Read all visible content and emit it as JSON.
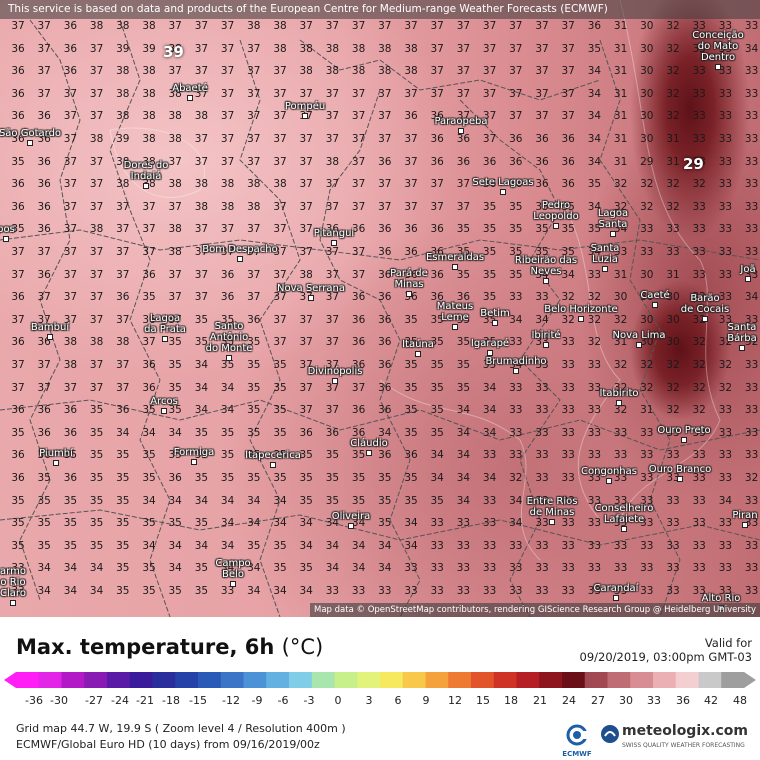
{
  "header_notice": "This service is based on data and products of the European Centre for Medium-range Weather Forecasts (ECMWF)",
  "attribution": "Map data © OpenStreetMap contributors, rendering GIScience Research Group @ Heidelberg University",
  "title": "Max. temperature, 6h",
  "unit": "(°C)",
  "valid_label": "Valid for",
  "valid_time": "09/20/2019, 03:00pm GMT-03",
  "grid_info": "Grid map 44.7 W, 19.9 S ( Zoom level 4 / Resolution 400m )",
  "model_info": "ECMWF/Global Euro HD (10 days) from 09/16/2019/00z",
  "ecmwf_label": "ECMWF",
  "brand": "meteologix.com",
  "brand_sub": "SWISS QUALITY WEATHER FORECASTING",
  "scale": {
    "ticks": [
      "-36",
      "-30",
      "-27",
      "-24",
      "-21",
      "-18",
      "-15",
      "-12",
      "-9",
      "-6",
      "-3",
      "0",
      "3",
      "6",
      "9",
      "12",
      "15",
      "18",
      "21",
      "24",
      "27",
      "30",
      "33",
      "36",
      "42",
      "48"
    ],
    "colors": [
      "#ff1ef5",
      "#e225e6",
      "#b419c8",
      "#8a1ab4",
      "#5b1aa6",
      "#3a1c9a",
      "#2a2d9c",
      "#2442a8",
      "#2a5ab8",
      "#3a75c8",
      "#4c92d6",
      "#62b1e0",
      "#7fcde6",
      "#a8e6ae",
      "#c7ef8a",
      "#e3f27a",
      "#f6e85f",
      "#f8c84a",
      "#f6a23c",
      "#ee7a31",
      "#e2542a",
      "#cf3326",
      "#b51e24",
      "#8e141e",
      "#6a0f18",
      "#a24852",
      "#c06c74",
      "#d88c93",
      "#ebb0b4",
      "#f4cfd2",
      "#c9c9c9",
      "#9e9e9e"
    ]
  },
  "labels_big": [
    {
      "text": "39"
    },
    {
      "text": "29"
    }
  ],
  "rows": [
    [
      "37",
      "37",
      "36",
      "38",
      "38",
      "38",
      "37",
      "37",
      "37",
      "38",
      "38",
      "37",
      "37",
      "37",
      "37",
      "37",
      "37",
      "37",
      "37",
      "37",
      "37",
      "37",
      "36",
      "31",
      "30",
      "32",
      "33",
      "33",
      "33"
    ],
    [
      "36",
      "37",
      "36",
      "37",
      "39",
      "39",
      "38",
      "37",
      "37",
      "37",
      "38",
      "38",
      "38",
      "38",
      "38",
      "38",
      "37",
      "37",
      "37",
      "37",
      "37",
      "37",
      "35",
      "31",
      "30",
      "32",
      "33",
      "33",
      "34"
    ],
    [
      "36",
      "37",
      "36",
      "37",
      "38",
      "38",
      "37",
      "37",
      "37",
      "37",
      "37",
      "38",
      "38",
      "38",
      "38",
      "38",
      "37",
      "37",
      "37",
      "37",
      "37",
      "37",
      "34",
      "31",
      "30",
      "32",
      "33",
      "33",
      "33"
    ],
    [
      "36",
      "37",
      "37",
      "37",
      "38",
      "38",
      "38",
      "37",
      "37",
      "37",
      "37",
      "37",
      "37",
      "37",
      "37",
      "37",
      "37",
      "37",
      "37",
      "37",
      "37",
      "37",
      "34",
      "31",
      "30",
      "32",
      "33",
      "33",
      "33"
    ],
    [
      "36",
      "36",
      "37",
      "37",
      "38",
      "38",
      "38",
      "38",
      "37",
      "37",
      "37",
      "37",
      "37",
      "37",
      "37",
      "36",
      "36",
      "37",
      "37",
      "37",
      "37",
      "37",
      "34",
      "31",
      "30",
      "32",
      "33",
      "33",
      "33"
    ],
    [
      "36",
      "36",
      "37",
      "38",
      "39",
      "38",
      "38",
      "37",
      "37",
      "37",
      "37",
      "37",
      "37",
      "37",
      "37",
      "37",
      "36",
      "36",
      "37",
      "36",
      "36",
      "36",
      "34",
      "31",
      "30",
      "31",
      "33",
      "33",
      "33"
    ],
    [
      "35",
      "36",
      "37",
      "37",
      "38",
      "38",
      "37",
      "37",
      "37",
      "37",
      "37",
      "37",
      "38",
      "37",
      "36",
      "37",
      "36",
      "36",
      "36",
      "36",
      "36",
      "36",
      "34",
      "31",
      "29",
      "31",
      "33",
      "33",
      "33"
    ],
    [
      "36",
      "36",
      "37",
      "37",
      "38",
      "38",
      "38",
      "38",
      "38",
      "38",
      "38",
      "37",
      "37",
      "37",
      "37",
      "37",
      "37",
      "37",
      "36",
      "36",
      "36",
      "36",
      "35",
      "32",
      "32",
      "32",
      "32",
      "33",
      "33"
    ],
    [
      "36",
      "36",
      "37",
      "37",
      "37",
      "37",
      "37",
      "38",
      "38",
      "38",
      "37",
      "37",
      "37",
      "37",
      "37",
      "37",
      "37",
      "37",
      "35",
      "35",
      "35",
      "35",
      "34",
      "32",
      "32",
      "32",
      "33",
      "33",
      "33"
    ],
    [
      "35",
      "36",
      "37",
      "38",
      "37",
      "37",
      "38",
      "37",
      "37",
      "37",
      "37",
      "37",
      "36",
      "36",
      "36",
      "36",
      "36",
      "35",
      "35",
      "35",
      "35",
      "35",
      "35",
      "34",
      "33",
      "33",
      "33",
      "33",
      "33"
    ],
    [
      "37",
      "37",
      "37",
      "37",
      "37",
      "37",
      "38",
      "37",
      "37",
      "37",
      "37",
      "37",
      "37",
      "37",
      "36",
      "36",
      "36",
      "35",
      "35",
      "35",
      "35",
      "35",
      "34",
      "33",
      "33",
      "33",
      "33",
      "33",
      "33"
    ],
    [
      "37",
      "36",
      "37",
      "37",
      "37",
      "36",
      "37",
      "37",
      "36",
      "37",
      "37",
      "38",
      "37",
      "37",
      "36",
      "36",
      "36",
      "35",
      "35",
      "35",
      "34",
      "34",
      "33",
      "31",
      "30",
      "31",
      "33",
      "33",
      "33"
    ],
    [
      "36",
      "37",
      "37",
      "37",
      "36",
      "35",
      "37",
      "37",
      "36",
      "37",
      "37",
      "37",
      "37",
      "36",
      "36",
      "36",
      "36",
      "36",
      "35",
      "33",
      "33",
      "32",
      "32",
      "30",
      "30",
      "30",
      "32",
      "33",
      "34"
    ],
    [
      "37",
      "37",
      "37",
      "37",
      "37",
      "36",
      "37",
      "35",
      "35",
      "36",
      "37",
      "37",
      "37",
      "36",
      "36",
      "35",
      "35",
      "35",
      "35",
      "34",
      "34",
      "32",
      "32",
      "32",
      "30",
      "30",
      "32",
      "33",
      "33"
    ],
    [
      "36",
      "36",
      "38",
      "38",
      "38",
      "37",
      "35",
      "35",
      "35",
      "35",
      "37",
      "37",
      "37",
      "36",
      "36",
      "35",
      "35",
      "35",
      "35",
      "33",
      "33",
      "33",
      "32",
      "31",
      "30",
      "30",
      "32",
      "32",
      "32"
    ],
    [
      "37",
      "37",
      "38",
      "37",
      "37",
      "36",
      "35",
      "34",
      "35",
      "35",
      "35",
      "37",
      "37",
      "36",
      "36",
      "35",
      "35",
      "35",
      "35",
      "34",
      "33",
      "33",
      "33",
      "32",
      "32",
      "32",
      "32",
      "32",
      "33"
    ],
    [
      "37",
      "37",
      "37",
      "37",
      "37",
      "36",
      "35",
      "34",
      "34",
      "35",
      "35",
      "37",
      "37",
      "37",
      "36",
      "35",
      "35",
      "35",
      "34",
      "33",
      "33",
      "33",
      "33",
      "32",
      "32",
      "32",
      "32",
      "32",
      "33"
    ],
    [
      "36",
      "36",
      "36",
      "35",
      "36",
      "35",
      "35",
      "34",
      "34",
      "35",
      "35",
      "37",
      "37",
      "36",
      "36",
      "35",
      "35",
      "34",
      "34",
      "33",
      "33",
      "33",
      "33",
      "32",
      "31",
      "32",
      "32",
      "33",
      "33"
    ],
    [
      "35",
      "36",
      "36",
      "35",
      "34",
      "34",
      "34",
      "35",
      "35",
      "35",
      "35",
      "36",
      "36",
      "36",
      "34",
      "35",
      "35",
      "34",
      "34",
      "33",
      "33",
      "33",
      "33",
      "33",
      "33",
      "33",
      "33",
      "33",
      "33"
    ],
    [
      "36",
      "36",
      "35",
      "35",
      "35",
      "35",
      "35",
      "35",
      "35",
      "35",
      "35",
      "35",
      "35",
      "35",
      "36",
      "36",
      "34",
      "34",
      "33",
      "33",
      "33",
      "33",
      "33",
      "33",
      "33",
      "33",
      "33",
      "33",
      "33"
    ],
    [
      "36",
      "35",
      "36",
      "35",
      "35",
      "35",
      "36",
      "35",
      "35",
      "35",
      "35",
      "35",
      "35",
      "35",
      "35",
      "35",
      "34",
      "34",
      "34",
      "32",
      "33",
      "33",
      "33",
      "33",
      "33",
      "33",
      "33",
      "33",
      "32"
    ],
    [
      "35",
      "35",
      "35",
      "35",
      "35",
      "34",
      "34",
      "34",
      "34",
      "34",
      "34",
      "35",
      "35",
      "35",
      "35",
      "35",
      "35",
      "34",
      "33",
      "34",
      "33",
      "33",
      "33",
      "33",
      "33",
      "33",
      "33",
      "34",
      "33"
    ],
    [
      "35",
      "35",
      "35",
      "35",
      "35",
      "35",
      "35",
      "35",
      "34",
      "34",
      "34",
      "34",
      "34",
      "34",
      "35",
      "34",
      "33",
      "33",
      "33",
      "34",
      "33",
      "33",
      "33",
      "33",
      "33",
      "33",
      "33",
      "33",
      "33"
    ],
    [
      "35",
      "35",
      "35",
      "35",
      "35",
      "34",
      "34",
      "34",
      "34",
      "35",
      "35",
      "34",
      "34",
      "34",
      "34",
      "34",
      "33",
      "33",
      "33",
      "33",
      "33",
      "33",
      "33",
      "33",
      "33",
      "33",
      "33",
      "33",
      "33"
    ],
    [
      "33",
      "34",
      "34",
      "34",
      "35",
      "35",
      "34",
      "35",
      "34",
      "34",
      "35",
      "35",
      "34",
      "34",
      "34",
      "33",
      "33",
      "33",
      "33",
      "33",
      "33",
      "33",
      "33",
      "33",
      "33",
      "33",
      "33",
      "33",
      "33"
    ],
    [
      "33",
      "34",
      "34",
      "34",
      "35",
      "35",
      "35",
      "35",
      "33",
      "34",
      "34",
      "34",
      "33",
      "33",
      "33",
      "33",
      "33",
      "33",
      "33",
      "33",
      "33",
      "33",
      "33",
      "33",
      "33",
      "33",
      "33",
      "33",
      "33"
    ]
  ],
  "cities": [
    {
      "name": "Conceição\ndo Mato\nDentro"
    },
    {
      "name": "Abaeté"
    },
    {
      "name": "Pompéu"
    },
    {
      "name": "Paraopeba"
    },
    {
      "name": "São Gotardo"
    },
    {
      "name": "Dores do\nIndaiá"
    },
    {
      "name": "Sete Lagoas"
    },
    {
      "name": "Pedro\nLeopoldo"
    },
    {
      "name": "Lagoa\nSanta"
    },
    {
      "name": "Pitangui"
    },
    {
      "name": "Bom Despacho"
    },
    {
      "name": "Esmeraldas"
    },
    {
      "name": "Ribeirão das\nNeves"
    },
    {
      "name": "Santa\nLuzia"
    },
    {
      "name": "Pará de\nMinas"
    },
    {
      "name": "Nova Serrana"
    },
    {
      "name": "Caeté"
    },
    {
      "name": "Barão\nde Cocais"
    },
    {
      "name": "Bambuí"
    },
    {
      "name": "Lagoa\nda Prata"
    },
    {
      "name": "Santo\nAntônio\ndo Monte"
    },
    {
      "name": "Mateus\nLeme"
    },
    {
      "name": "Betim"
    },
    {
      "name": "Belo Horizonte"
    },
    {
      "name": "Nova Lima"
    },
    {
      "name": "Santa\nBárba"
    },
    {
      "name": "Itaúna"
    },
    {
      "name": "Igarapé"
    },
    {
      "name": "Ibirité"
    },
    {
      "name": "Divinópolis"
    },
    {
      "name": "Brumadinho"
    },
    {
      "name": "Itabirito"
    },
    {
      "name": "Arcos"
    },
    {
      "name": "Ouro Preto"
    },
    {
      "name": "Cláudio"
    },
    {
      "name": "Piumhí"
    },
    {
      "name": "Formiga"
    },
    {
      "name": "Itapecerica"
    },
    {
      "name": "Congonhas"
    },
    {
      "name": "Ouro Branco"
    },
    {
      "name": "Entre Rios\nde Minas"
    },
    {
      "name": "Conselheiro\nLafaiete"
    },
    {
      "name": "Oliveira"
    },
    {
      "name": "Piran"
    },
    {
      "name": "Campo\nBelo"
    },
    {
      "name": "armo\no Rio\nClaro"
    },
    {
      "name": "Carandaí"
    },
    {
      "name": "Alto Rio"
    },
    {
      "name": "Joã"
    },
    {
      "name": "pos"
    }
  ]
}
